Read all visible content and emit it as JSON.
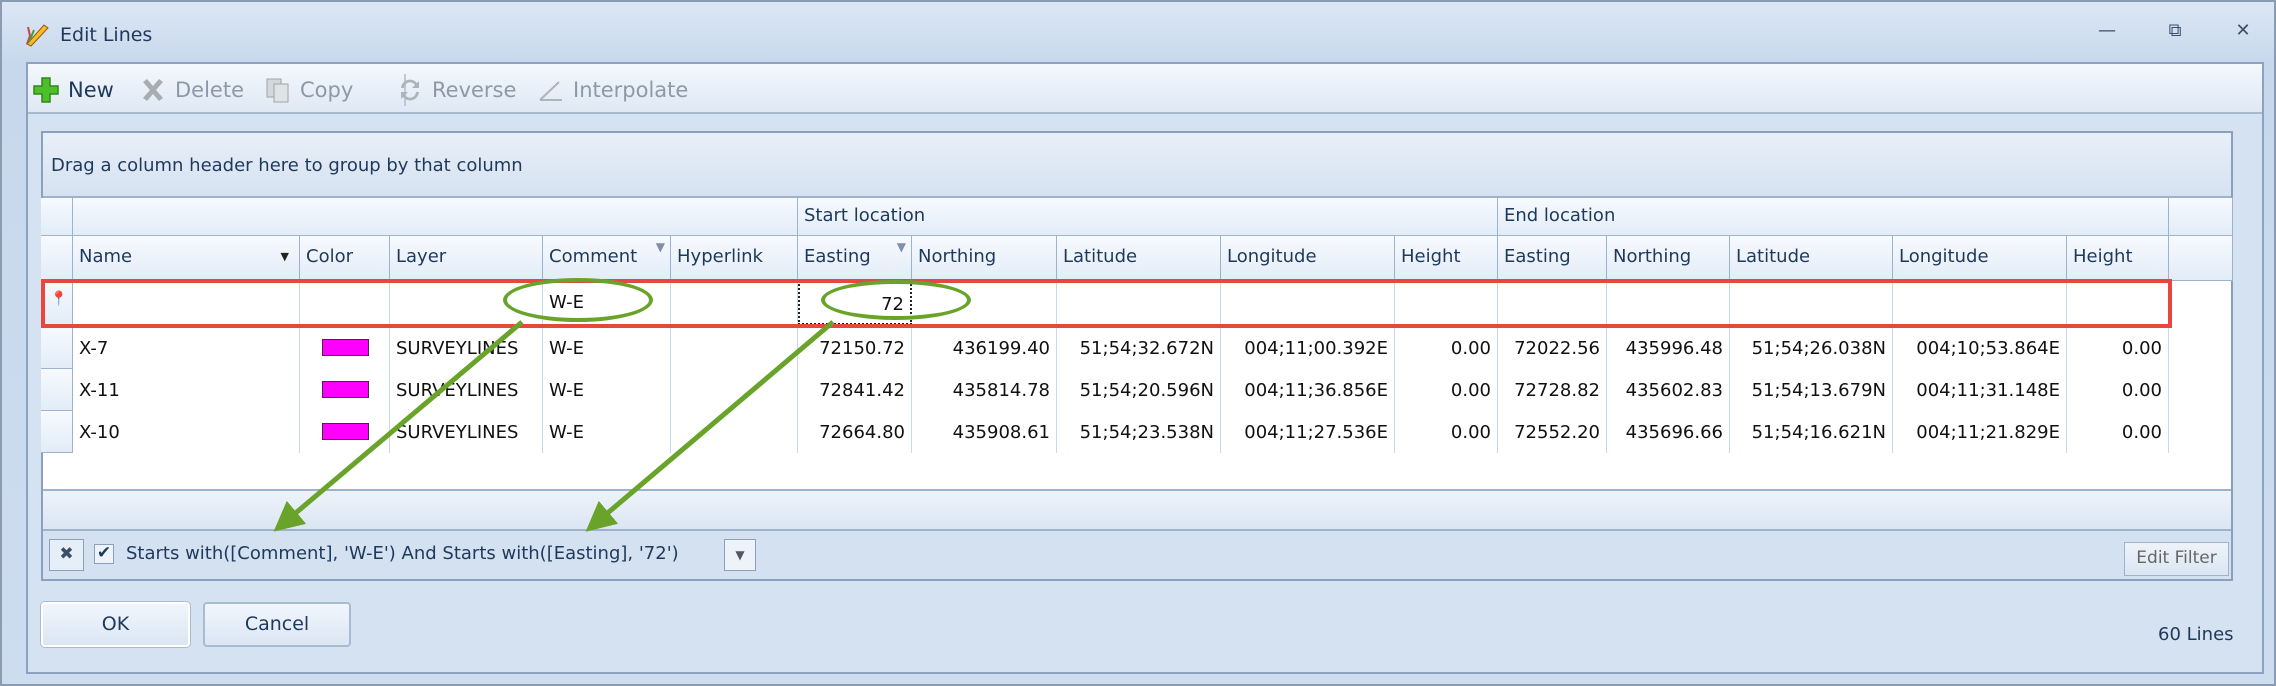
{
  "window": {
    "title": "Edit Lines",
    "icon": "pencil-icon",
    "controls": [
      "minimize",
      "restore",
      "close"
    ]
  },
  "toolbar": {
    "new": {
      "label": "New",
      "icon": "plus-icon",
      "enabled": true
    },
    "delete": {
      "label": "Delete",
      "icon": "x-icon",
      "enabled": false
    },
    "copy": {
      "label": "Copy",
      "icon": "copy-icon",
      "enabled": false
    },
    "reverse": {
      "label": "Reverse",
      "icon": "reverse-icon",
      "enabled": false
    },
    "interpolate": {
      "label": "Interpolate",
      "icon": "interpolate-icon",
      "enabled": false
    }
  },
  "grid": {
    "group_panel_text": "Drag a column header here to group by that column",
    "bands": {
      "start": "Start location",
      "end": "End location"
    },
    "columns": [
      {
        "label": "Name",
        "sort": "dropdown"
      },
      {
        "label": "Color"
      },
      {
        "label": "Layer"
      },
      {
        "label": "Comment",
        "filtered": true
      },
      {
        "label": "Hyperlink"
      },
      {
        "label": "Easting",
        "filtered": true
      },
      {
        "label": "Northing"
      },
      {
        "label": "Latitude"
      },
      {
        "label": "Longitude"
      },
      {
        "label": "Height"
      },
      {
        "label": "Easting"
      },
      {
        "label": "Northing"
      },
      {
        "label": "Latitude"
      },
      {
        "label": "Longitude"
      },
      {
        "label": "Height"
      }
    ],
    "filter_row": {
      "comment": "W-E",
      "easting": "72"
    },
    "rows": [
      {
        "name": "X-7",
        "color": "#ff00ff",
        "layer": "SURVEYLINES",
        "comment": "W-E",
        "hyperlink": "",
        "s_easting": "72150.72",
        "s_northing": "436199.40",
        "s_lat": "51;54;32.672N",
        "s_lon": "004;11;00.392E",
        "s_height": "0.00",
        "e_easting": "72022.56",
        "e_northing": "435996.48",
        "e_lat": "51;54;26.038N",
        "e_lon": "004;10;53.864E",
        "e_height": "0.00"
      },
      {
        "name": "X-11",
        "color": "#ff00ff",
        "layer": "SURVEYLINES",
        "comment": "W-E",
        "hyperlink": "",
        "s_easting": "72841.42",
        "s_northing": "435814.78",
        "s_lat": "51;54;20.596N",
        "s_lon": "004;11;36.856E",
        "s_height": "0.00",
        "e_easting": "72728.82",
        "e_northing": "435602.83",
        "e_lat": "51;54;13.679N",
        "e_lon": "004;11;31.148E",
        "e_height": "0.00"
      },
      {
        "name": "X-10",
        "color": "#ff00ff",
        "layer": "SURVEYLINES",
        "comment": "W-E",
        "hyperlink": "",
        "s_easting": "72664.80",
        "s_northing": "435908.61",
        "s_lat": "51;54;23.538N",
        "s_lon": "004;11;27.536E",
        "s_height": "0.00",
        "e_easting": "72552.20",
        "e_northing": "435696.66",
        "e_lat": "51;54;16.621N",
        "e_lon": "004;11;21.829E",
        "e_height": "0.00"
      }
    ]
  },
  "filter_panel": {
    "checked": true,
    "expression": "Starts with([Comment], 'W-E') And Starts with([Easting], '72')",
    "edit_filter_label": "Edit Filter"
  },
  "buttons": {
    "ok": "OK",
    "cancel": "Cancel"
  },
  "status": {
    "count": "60 Lines"
  },
  "annotations": {
    "highlight_color": "#e8473d",
    "arrow_color": "#6aa329"
  }
}
